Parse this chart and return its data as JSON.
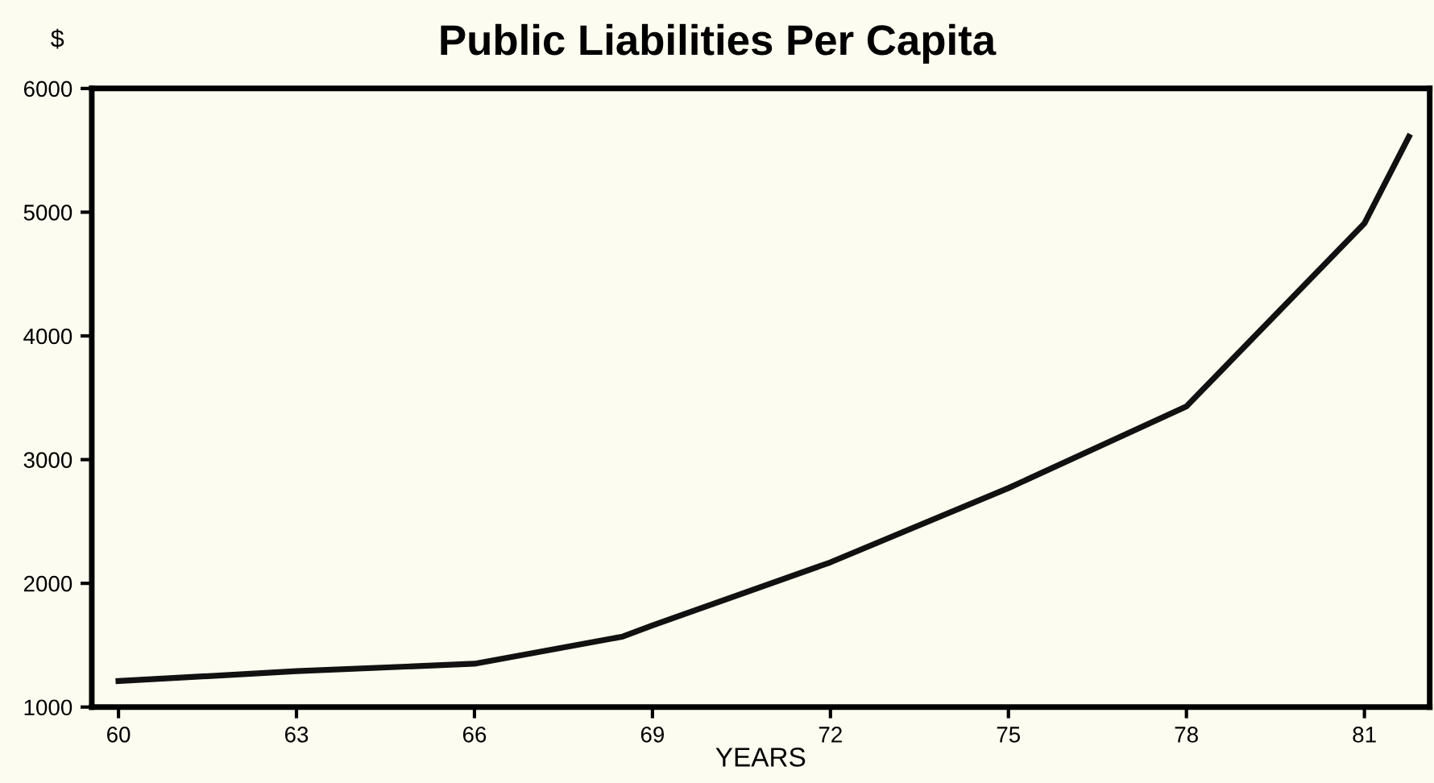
{
  "chart_data": {
    "type": "line",
    "title": "Public Liabilities Per Capita",
    "ylabel": "$",
    "xlabel": "YEARS",
    "x": [
      60,
      63,
      66,
      68.5,
      69,
      72,
      75,
      78,
      81,
      81.75
    ],
    "series": [
      {
        "color": "#111111",
        "values": [
          1210,
          1290,
          1350,
          1570,
          1660,
          2170,
          2770,
          3430,
          4910,
          5610
        ]
      }
    ],
    "xlim": [
      59.55,
      82.1
    ],
    "ylim": [
      1000,
      6000
    ],
    "xticks": [
      60,
      63,
      66,
      69,
      72,
      75,
      78,
      81
    ],
    "yticks": [
      1000,
      2000,
      3000,
      4000,
      5000,
      6000
    ],
    "grid": false,
    "legend": false,
    "marker": "none",
    "line_style": "solid"
  }
}
